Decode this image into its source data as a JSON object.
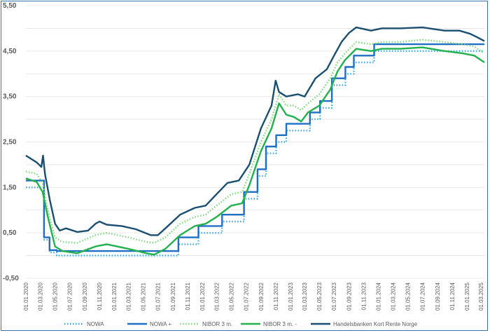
{
  "chart_data": {
    "type": "line",
    "title": "",
    "xlabel": "",
    "ylabel": "",
    "ylim": [
      -0.5,
      5.5
    ],
    "grid": "horizontal",
    "legend_position": "bottom",
    "y_ticks": [
      "5,50",
      "4,50",
      "3,50",
      "2,50",
      "1,50",
      "0,50",
      "-0,50"
    ],
    "y_tick_values": [
      5.5,
      4.5,
      3.5,
      2.5,
      1.5,
      0.5,
      -0.5
    ],
    "x_ticks": [
      "01.01.2020",
      "01.03.2020",
      "01.05.2020",
      "01.07.2020",
      "01.09.2020",
      "01.11.2020",
      "01.01.2021",
      "01.03.2021",
      "01.05.2021",
      "01.07.2021",
      "01.09.2021",
      "01.11.2021",
      "01.01.2022",
      "01.03.2022",
      "01.05.2022",
      "01.07.2022",
      "01.09.2022",
      "01.11.2022",
      "01.01.2023",
      "01.03.2023",
      "01.05.2023",
      "01.07.2023",
      "01.09.2023",
      "01.11.2023",
      "01.01.2024",
      "01.03.2024",
      "01.05.2024",
      "01.07.2024",
      "01.09.2024",
      "01.11.2024",
      "01.01.2025",
      "01.03.2025"
    ],
    "x_range": [
      "2020-01-01",
      "2025-03-15"
    ],
    "series": [
      {
        "name": "NOWA",
        "color": "#3fa9dc",
        "style": "dotted",
        "step": true,
        "points": [
          [
            "2020-01-01",
            1.5
          ],
          [
            "2020-03-13",
            1.5
          ],
          [
            "2020-03-16",
            0.35
          ],
          [
            "2020-04-06",
            0.35
          ],
          [
            "2020-04-08",
            0.07
          ],
          [
            "2020-05-08",
            0.0
          ],
          [
            "2021-09-23",
            0.0
          ],
          [
            "2021-09-24",
            0.25
          ],
          [
            "2021-12-16",
            0.5
          ],
          [
            "2022-03-24",
            0.75
          ],
          [
            "2022-06-23",
            1.25
          ],
          [
            "2022-08-18",
            1.75
          ],
          [
            "2022-09-22",
            2.25
          ],
          [
            "2022-11-03",
            2.5
          ],
          [
            "2022-12-15",
            2.75
          ],
          [
            "2023-03-23",
            3.0
          ],
          [
            "2023-05-04",
            3.25
          ],
          [
            "2023-06-22",
            3.75
          ],
          [
            "2023-08-17",
            4.0
          ],
          [
            "2023-09-21",
            4.25
          ],
          [
            "2023-12-14",
            4.5
          ],
          [
            "2025-03-15",
            4.5
          ]
        ]
      },
      {
        "name": "NOWA +",
        "color": "#1f6fc5",
        "style": "solid",
        "step": true,
        "points": [
          [
            "2020-01-01",
            1.65
          ],
          [
            "2020-03-13",
            1.65
          ],
          [
            "2020-03-16",
            0.4
          ],
          [
            "2020-04-06",
            0.4
          ],
          [
            "2020-04-08",
            0.12
          ],
          [
            "2020-05-08",
            0.1
          ],
          [
            "2021-09-23",
            0.1
          ],
          [
            "2021-09-24",
            0.4
          ],
          [
            "2021-12-16",
            0.65
          ],
          [
            "2022-03-24",
            0.9
          ],
          [
            "2022-06-23",
            1.4
          ],
          [
            "2022-08-18",
            1.9
          ],
          [
            "2022-09-22",
            2.4
          ],
          [
            "2022-11-03",
            2.65
          ],
          [
            "2022-12-15",
            2.9
          ],
          [
            "2023-03-23",
            3.15
          ],
          [
            "2023-05-04",
            3.4
          ],
          [
            "2023-06-22",
            3.9
          ],
          [
            "2023-08-17",
            4.15
          ],
          [
            "2023-09-21",
            4.4
          ],
          [
            "2023-12-14",
            4.65
          ],
          [
            "2025-03-15",
            4.65
          ]
        ]
      },
      {
        "name": "NIBOR 3 m.",
        "color": "#7dd97a",
        "style": "dotted",
        "step": false,
        "points": [
          [
            "2020-01-01",
            1.85
          ],
          [
            "2020-02-15",
            1.8
          ],
          [
            "2020-03-10",
            1.6
          ],
          [
            "2020-04-01",
            1.0
          ],
          [
            "2020-05-01",
            0.4
          ],
          [
            "2020-06-01",
            0.3
          ],
          [
            "2020-08-01",
            0.28
          ],
          [
            "2020-10-15",
            0.45
          ],
          [
            "2020-12-01",
            0.5
          ],
          [
            "2021-03-01",
            0.4
          ],
          [
            "2021-05-15",
            0.3
          ],
          [
            "2021-06-15",
            0.28
          ],
          [
            "2021-08-01",
            0.4
          ],
          [
            "2021-10-01",
            0.7
          ],
          [
            "2021-12-01",
            0.85
          ],
          [
            "2022-01-15",
            0.9
          ],
          [
            "2022-03-01",
            1.1
          ],
          [
            "2022-05-01",
            1.35
          ],
          [
            "2022-06-15",
            1.4
          ],
          [
            "2022-07-15",
            1.8
          ],
          [
            "2022-09-01",
            2.5
          ],
          [
            "2022-10-15",
            3.0
          ],
          [
            "2022-11-15",
            3.55
          ],
          [
            "2022-12-15",
            3.3
          ],
          [
            "2023-01-15",
            3.3
          ],
          [
            "2023-02-15",
            3.2
          ],
          [
            "2023-03-15",
            3.35
          ],
          [
            "2023-05-01",
            3.55
          ],
          [
            "2023-06-15",
            3.9
          ],
          [
            "2023-07-15",
            4.25
          ],
          [
            "2023-08-15",
            4.45
          ],
          [
            "2023-10-01",
            4.7
          ],
          [
            "2023-12-01",
            4.65
          ],
          [
            "2024-01-15",
            4.7
          ],
          [
            "2024-04-01",
            4.7
          ],
          [
            "2024-07-01",
            4.75
          ],
          [
            "2024-10-01",
            4.7
          ],
          [
            "2024-12-15",
            4.65
          ],
          [
            "2025-02-01",
            4.6
          ],
          [
            "2025-03-15",
            4.45
          ]
        ]
      },
      {
        "name": "NIBOR 3 m. -",
        "color": "#22b14c",
        "style": "solid",
        "step": false,
        "points": [
          [
            "2020-01-01",
            1.7
          ],
          [
            "2020-02-15",
            1.62
          ],
          [
            "2020-03-10",
            1.4
          ],
          [
            "2020-04-01",
            0.85
          ],
          [
            "2020-05-01",
            0.2
          ],
          [
            "2020-06-01",
            0.1
          ],
          [
            "2020-08-01",
            0.05
          ],
          [
            "2020-10-15",
            0.2
          ],
          [
            "2020-12-01",
            0.25
          ],
          [
            "2021-03-01",
            0.15
          ],
          [
            "2021-05-15",
            0.05
          ],
          [
            "2021-06-15",
            0.02
          ],
          [
            "2021-08-01",
            0.15
          ],
          [
            "2021-10-01",
            0.45
          ],
          [
            "2021-12-01",
            0.65
          ],
          [
            "2022-01-15",
            0.7
          ],
          [
            "2022-03-01",
            0.85
          ],
          [
            "2022-05-01",
            1.1
          ],
          [
            "2022-06-15",
            1.15
          ],
          [
            "2022-07-15",
            1.55
          ],
          [
            "2022-09-01",
            2.3
          ],
          [
            "2022-10-15",
            2.8
          ],
          [
            "2022-11-15",
            3.35
          ],
          [
            "2022-12-15",
            3.1
          ],
          [
            "2023-01-15",
            3.05
          ],
          [
            "2023-02-15",
            2.95
          ],
          [
            "2023-03-15",
            3.15
          ],
          [
            "2023-05-01",
            3.3
          ],
          [
            "2023-06-15",
            3.65
          ],
          [
            "2023-07-15",
            4.05
          ],
          [
            "2023-08-15",
            4.3
          ],
          [
            "2023-10-01",
            4.55
          ],
          [
            "2023-12-01",
            4.5
          ],
          [
            "2024-01-15",
            4.55
          ],
          [
            "2024-04-01",
            4.55
          ],
          [
            "2024-07-01",
            4.58
          ],
          [
            "2024-10-01",
            4.5
          ],
          [
            "2024-12-15",
            4.45
          ],
          [
            "2025-02-01",
            4.4
          ],
          [
            "2025-03-15",
            4.25
          ]
        ]
      },
      {
        "name": "Handelsbanken Kort Rente Norge",
        "color": "#1b4f72",
        "style": "solid",
        "step": false,
        "points": [
          [
            "2020-01-01",
            2.2
          ],
          [
            "2020-02-15",
            2.05
          ],
          [
            "2020-03-05",
            1.95
          ],
          [
            "2020-03-12",
            2.2
          ],
          [
            "2020-03-20",
            1.8
          ],
          [
            "2020-04-10",
            1.2
          ],
          [
            "2020-05-01",
            0.7
          ],
          [
            "2020-05-20",
            0.55
          ],
          [
            "2020-06-15",
            0.6
          ],
          [
            "2020-08-01",
            0.52
          ],
          [
            "2020-09-15",
            0.55
          ],
          [
            "2020-10-15",
            0.7
          ],
          [
            "2020-11-01",
            0.75
          ],
          [
            "2020-12-01",
            0.68
          ],
          [
            "2021-02-01",
            0.65
          ],
          [
            "2021-04-01",
            0.58
          ],
          [
            "2021-06-01",
            0.45
          ],
          [
            "2021-07-01",
            0.45
          ],
          [
            "2021-08-01",
            0.6
          ],
          [
            "2021-10-01",
            0.9
          ],
          [
            "2021-12-01",
            1.05
          ],
          [
            "2022-01-15",
            1.1
          ],
          [
            "2022-03-01",
            1.35
          ],
          [
            "2022-04-15",
            1.6
          ],
          [
            "2022-06-01",
            1.65
          ],
          [
            "2022-07-15",
            2.0
          ],
          [
            "2022-09-01",
            2.8
          ],
          [
            "2022-10-15",
            3.3
          ],
          [
            "2022-11-01",
            3.85
          ],
          [
            "2022-11-15",
            3.6
          ],
          [
            "2022-12-15",
            3.5
          ],
          [
            "2023-02-01",
            3.55
          ],
          [
            "2023-03-01",
            3.5
          ],
          [
            "2023-04-15",
            3.9
          ],
          [
            "2023-06-01",
            4.1
          ],
          [
            "2023-07-01",
            4.4
          ],
          [
            "2023-08-01",
            4.7
          ],
          [
            "2023-09-01",
            4.9
          ],
          [
            "2023-10-01",
            5.02
          ],
          [
            "2023-12-01",
            4.95
          ],
          [
            "2024-01-15",
            5.0
          ],
          [
            "2024-04-01",
            5.0
          ],
          [
            "2024-07-01",
            5.02
          ],
          [
            "2024-10-01",
            4.95
          ],
          [
            "2024-12-01",
            4.95
          ],
          [
            "2025-01-15",
            4.88
          ],
          [
            "2025-02-15",
            4.8
          ],
          [
            "2025-03-15",
            4.72
          ]
        ]
      }
    ]
  }
}
